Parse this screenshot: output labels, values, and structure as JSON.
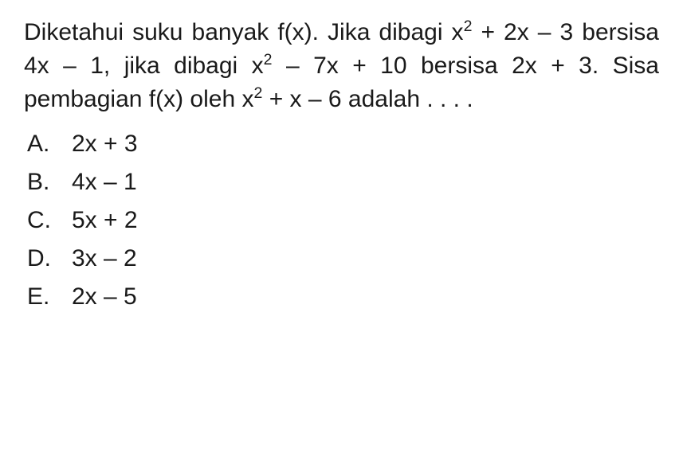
{
  "question": {
    "line1_pre": "Diketahui suku banyak f(x). Jika dibagi x",
    "line1_exp": "2",
    "line1_post": " + ",
    "line2_pre": "2x – 3 bersisa 4x – 1, jika dibagi x",
    "line2_exp": "2",
    "line2_post": " – 7x + 10 ",
    "line3": "bersisa 2x + 3. Sisa pembagian f(x) oleh ",
    "line4_pre": "x",
    "line4_exp": "2",
    "line4_post": " + x – 6 adalah . . . ."
  },
  "options": {
    "a": {
      "letter": "A.",
      "value": "2x + 3"
    },
    "b": {
      "letter": "B.",
      "value": "4x – 1"
    },
    "c": {
      "letter": "C.",
      "value": "5x + 2"
    },
    "d": {
      "letter": "D.",
      "value": "3x – 2"
    },
    "e": {
      "letter": "E.",
      "value": "2x – 5"
    }
  },
  "style": {
    "text_color": "#1a1a1a",
    "background_color": "#ffffff",
    "font_size_pt": 22,
    "font_family": "Arial"
  }
}
